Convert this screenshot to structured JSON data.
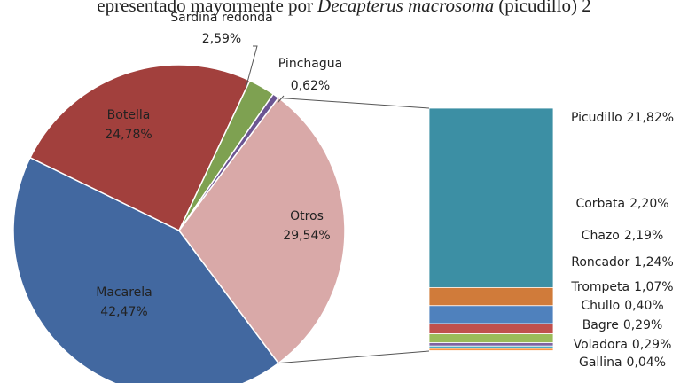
{
  "chart_data": {
    "type": "pie",
    "title": "epresentado mayormente por",
    "title_species": "Decapterus macrosoma",
    "title_end": "(picudillo) 2",
    "categories": [
      "Macarela",
      "Botella",
      "Sardina redonda",
      "Pinchagua",
      "Otros"
    ],
    "values": [
      42.47,
      24.78,
      2.59,
      0.62,
      29.54
    ],
    "value_labels": [
      "42,47%",
      "24,78%",
      "2,59%",
      "0,62%",
      "29,54%"
    ],
    "colors": [
      "#4268a0",
      "#a2403d",
      "#7ea151",
      "#6b5592",
      "#d9a9a8"
    ],
    "breakdown": {
      "type": "bar",
      "categories": [
        "Picudillo",
        "Corbata",
        "Chazo",
        "Roncador",
        "Trompeta",
        "Chullo",
        "Bagre",
        "Voladora",
        "Gallina"
      ],
      "values": [
        21.82,
        2.2,
        2.19,
        1.24,
        1.07,
        0.4,
        0.29,
        0.29,
        0.04
      ],
      "value_labels": [
        "21,82%",
        "2,20%",
        "2,19%",
        "1,24%",
        "1,07%",
        "0,40%",
        "0,29%",
        "0,29%",
        "0,04%"
      ],
      "colors": [
        "#3c8fa4",
        "#d07b3a",
        "#4f81bd",
        "#c0504d",
        "#9bbb59",
        "#8064a2",
        "#4bacc6",
        "#f79646",
        "#2c4d75"
      ]
    }
  }
}
